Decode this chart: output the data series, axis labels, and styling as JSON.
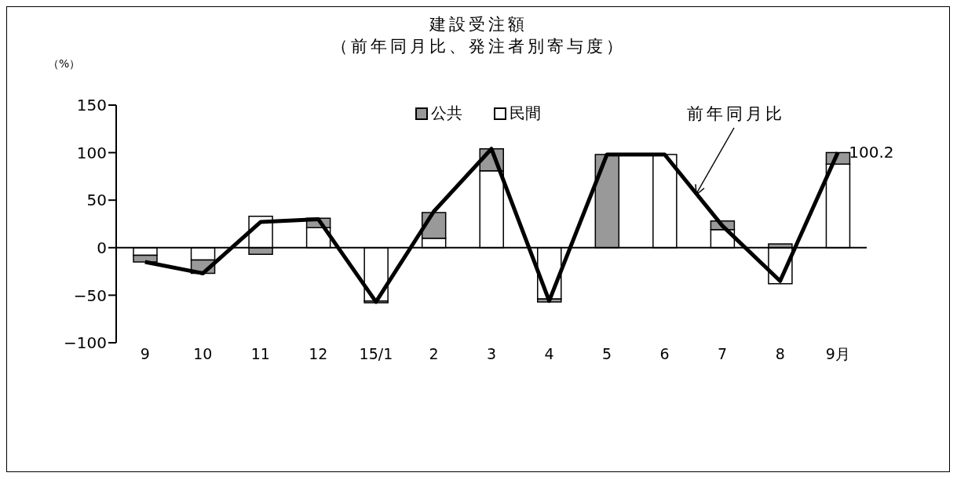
{
  "chart_data": {
    "type": "bar",
    "title": "建設受注額",
    "subtitle": "（前年同月比、発注者別寄与度）",
    "ylabel": "（%）",
    "categories": [
      "9",
      "10",
      "11",
      "12",
      "15/1",
      "2",
      "3",
      "4",
      "5",
      "6",
      "7",
      "8",
      "9月"
    ],
    "stacked": true,
    "series": [
      {
        "name": "民間",
        "color": "#ffffff",
        "values": [
          -8,
          -13,
          33,
          21,
          -56,
          10,
          81,
          -54,
          0,
          98,
          19,
          -38,
          88
        ]
      },
      {
        "name": "公共",
        "color": "#999999",
        "values": [
          -7,
          -14,
          -7,
          10,
          -2,
          27,
          23,
          -3,
          98,
          null,
          9,
          4,
          12
        ]
      },
      {
        "name": "前年同月比",
        "type": "line",
        "color": "#000000",
        "values": [
          -15,
          -27,
          27,
          30,
          -57,
          38,
          104,
          -56,
          98,
          98,
          23,
          -35,
          100.2
        ],
        "value_labels": [
          null,
          null,
          null,
          null,
          null,
          null,
          null,
          null,
          null,
          null,
          null,
          null,
          "100.2"
        ]
      }
    ],
    "ylim": [
      -100,
      150
    ],
    "yticks": [
      -100,
      -50,
      0,
      50,
      100,
      150
    ],
    "ref_lines": [
      {
        "axis": "y",
        "value": 0,
        "color": "#000000"
      }
    ],
    "grid": false,
    "legend": "top",
    "marker": "none",
    "line_style": "solid"
  }
}
